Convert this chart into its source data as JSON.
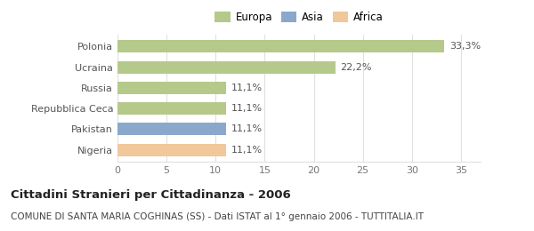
{
  "categories": [
    "Nigeria",
    "Pakistan",
    "Repubblica Ceca",
    "Russia",
    "Ucraina",
    "Polonia"
  ],
  "values": [
    11.1,
    11.1,
    11.1,
    11.1,
    22.2,
    33.3
  ],
  "labels": [
    "11,1%",
    "11,1%",
    "11,1%",
    "11,1%",
    "22,2%",
    "33,3%"
  ],
  "bar_colors": [
    "#f0c89a",
    "#8aa8cb",
    "#b5c98a",
    "#b5c98a",
    "#b5c98a",
    "#b5c98a"
  ],
  "legend_items": [
    {
      "label": "Europa",
      "color": "#b5c98a"
    },
    {
      "label": "Asia",
      "color": "#8aa8cb"
    },
    {
      "label": "Africa",
      "color": "#f0c89a"
    }
  ],
  "xlim": [
    0,
    37
  ],
  "xticks": [
    0,
    5,
    10,
    15,
    20,
    25,
    30,
    35
  ],
  "title_bold": "Cittadini Stranieri per Cittadinanza - 2006",
  "subtitle": "COMUNE DI SANTA MARIA COGHINAS (SS) - Dati ISTAT al 1° gennaio 2006 - TUTTITALIA.IT",
  "background_color": "#ffffff",
  "grid_color": "#e0e0e0",
  "bar_height": 0.6,
  "label_fontsize": 8,
  "tick_label_fontsize": 8,
  "ytick_fontsize": 8,
  "title_fontsize": 9.5,
  "subtitle_fontsize": 7.5,
  "legend_fontsize": 8.5
}
